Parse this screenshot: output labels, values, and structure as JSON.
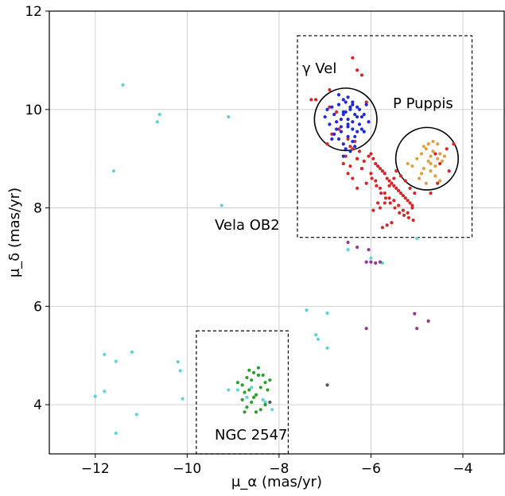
{
  "chart_data": {
    "type": "scatter",
    "title": "",
    "xlabel": "μ_α (mas/yr)",
    "ylabel": "μ_δ (mas/yr)",
    "xlim": [
      -13,
      -3.1
    ],
    "ylim": [
      3,
      12
    ],
    "grid": true,
    "x_ticks": [
      -12,
      -10,
      -8,
      -6,
      -4
    ],
    "y_ticks": [
      4,
      6,
      8,
      10,
      12
    ],
    "x_tick_labels": [
      "−12",
      "−10",
      "−8",
      "−6",
      "−4"
    ],
    "y_tick_labels": [
      "4",
      "6",
      "8",
      "10",
      "12"
    ],
    "colors": {
      "field": "#5fd3d6",
      "vela_ob2": "#d62728",
      "gamma_vel": "#1f2bd6",
      "p_puppis": "#e0a040",
      "ngc2547": "#2ca02c",
      "outlier": "#8e3b8e",
      "dark": "#555555"
    },
    "annotations": {
      "gamma_vel": "γ Vel",
      "p_puppis": "P Puppis",
      "vela_ob2": "Vela OB2",
      "ngc2547": "NGC 2547"
    },
    "regions": {
      "vela_box": {
        "x0": -7.6,
        "x1": -3.8,
        "y0": 7.4,
        "y1": 11.5
      },
      "ngc_box": {
        "x0": -9.8,
        "x1": -7.8,
        "y0": 3.0,
        "y1": 5.5
      },
      "gamma_circle": {
        "cx": -6.55,
        "cy": 9.8,
        "r": 0.68
      },
      "ppup_circle": {
        "cx": -4.78,
        "cy": 9.0,
        "r": 0.68
      }
    },
    "series": [
      {
        "key": "field",
        "x": [
          -11.4,
          -10.6,
          -10.65,
          -11.6,
          -9.1,
          -9.25,
          -11.8,
          -11.55,
          -11.2,
          -11.8,
          -12.0,
          -11.55,
          -11.1,
          -10.2,
          -10.15,
          -10.1,
          -7.4,
          -6.95,
          -7.2,
          -7.15,
          -6.95,
          -6.5,
          -6.0,
          -5.75,
          -5.0,
          -8.6,
          -8.7,
          -8.3,
          -8.15,
          -8.9,
          -9.1,
          -8.45,
          -8.35
        ],
        "y": [
          10.5,
          9.9,
          9.75,
          8.75,
          9.85,
          8.05,
          5.02,
          4.88,
          5.07,
          4.27,
          4.17,
          3.42,
          3.8,
          4.87,
          4.69,
          4.12,
          5.92,
          5.86,
          5.42,
          5.33,
          5.15,
          7.15,
          6.98,
          6.88,
          7.38,
          4.35,
          4.15,
          4.05,
          3.9,
          4.3,
          4.3,
          4.6,
          4.1
        ]
      },
      {
        "key": "vela_ob2",
        "x": [
          -7.2,
          -6.9,
          -6.75,
          -6.4,
          -6.3,
          -6.2,
          -6.1,
          -6.0,
          -5.95,
          -5.9,
          -5.85,
          -5.8,
          -5.75,
          -5.7,
          -5.65,
          -5.6,
          -5.55,
          -5.5,
          -5.45,
          -5.4,
          -5.35,
          -5.3,
          -5.25,
          -5.2,
          -5.15,
          -5.1,
          -6.35,
          -6.45,
          -6.25,
          -6.05,
          -6.15,
          -5.98,
          -5.88,
          -5.78,
          -5.68,
          -5.58,
          -5.48,
          -5.38,
          -5.28,
          -5.18,
          -5.08,
          -6.0,
          -5.9,
          -5.8,
          -5.7,
          -5.6,
          -5.5,
          -5.4,
          -5.3,
          -5.2,
          -5.1,
          -5.05,
          -5.5,
          -5.6,
          -5.7,
          -5.8,
          -5.45,
          -5.35,
          -5.25,
          -5.15,
          -5.55,
          -5.65,
          -5.75,
          -6.1,
          -6.2,
          -6.3,
          -5.95,
          -5.85,
          -6.45,
          -6.55,
          -6.6,
          -6.5,
          -6.4,
          -6.3,
          -4.5,
          -4.6,
          -4.3,
          -4.2,
          -4.35,
          -4.55,
          -4.7,
          -7.3,
          -6.9,
          -6.7,
          -6.5,
          -6.4,
          -6.3,
          -6.2,
          -6.85,
          -6.95
        ],
        "y": [
          10.2,
          10.05,
          9.95,
          11.05,
          10.8,
          10.7,
          10.15,
          9.1,
          9.0,
          8.9,
          8.85,
          8.8,
          8.75,
          8.7,
          8.6,
          8.55,
          8.5,
          8.45,
          8.4,
          8.35,
          8.3,
          8.25,
          8.2,
          8.15,
          8.1,
          8.05,
          9.35,
          9.25,
          9.15,
          9.05,
          8.95,
          8.6,
          8.45,
          8.3,
          8.2,
          8.1,
          8.0,
          7.9,
          7.85,
          7.8,
          7.75,
          8.7,
          8.55,
          8.4,
          8.3,
          8.2,
          8.15,
          8.05,
          7.95,
          7.9,
          8.0,
          8.3,
          8.6,
          8.45,
          8.1,
          8.0,
          8.75,
          8.65,
          8.55,
          8.4,
          7.7,
          7.65,
          7.6,
          8.5,
          8.8,
          9.0,
          7.95,
          8.1,
          8.85,
          9.05,
          8.9,
          8.7,
          8.6,
          8.4,
          8.9,
          9.1,
          8.75,
          9.3,
          9.2,
          8.5,
          8.3,
          10.2,
          10.4,
          9.6,
          9.4,
          9.2,
          9.0,
          8.8,
          9.5,
          9.3
        ]
      },
      {
        "key": "gamma_vel",
        "x": [
          -7.0,
          -6.95,
          -6.9,
          -6.85,
          -6.8,
          -6.75,
          -6.7,
          -6.65,
          -6.6,
          -6.55,
          -6.5,
          -6.45,
          -6.4,
          -6.35,
          -6.3,
          -6.25,
          -6.2,
          -6.15,
          -6.1,
          -6.05,
          -6.8,
          -6.7,
          -6.6,
          -6.5,
          -6.4,
          -6.3,
          -6.2,
          -6.6,
          -6.5,
          -6.4,
          -6.55,
          -6.45,
          -6.35,
          -6.65,
          -6.75,
          -6.85,
          -6.25,
          -6.15,
          -6.7,
          -6.6,
          -6.5,
          -6.4,
          -6.3,
          -6.55,
          -6.45,
          -6.65,
          -6.35,
          -6.5,
          -6.6,
          -6.4
        ],
        "y": [
          9.85,
          10.0,
          9.7,
          10.05,
          9.9,
          9.75,
          10.1,
          9.65,
          9.95,
          10.15,
          9.8,
          10.0,
          9.6,
          9.9,
          10.05,
          9.7,
          9.85,
          9.55,
          10.1,
          9.75,
          9.5,
          9.4,
          9.3,
          9.45,
          9.35,
          9.55,
          9.6,
          10.2,
          10.25,
          10.15,
          9.2,
          9.15,
          9.25,
          9.8,
          9.6,
          9.4,
          10.0,
          9.9,
          10.3,
          9.05,
          9.65,
          9.75,
          9.85,
          9.95,
          10.05,
          9.55,
          9.45,
          9.7,
          9.9,
          10.1
        ]
      },
      {
        "key": "p_puppis",
        "x": [
          -5.2,
          -5.1,
          -5.0,
          -4.9,
          -4.85,
          -4.8,
          -4.75,
          -4.7,
          -4.65,
          -4.6,
          -4.55,
          -4.5,
          -4.45,
          -4.4,
          -4.95,
          -4.9,
          -4.8,
          -4.7,
          -4.6,
          -4.5,
          -4.75,
          -4.65,
          -4.85,
          -4.55,
          -4.7
        ],
        "y": [
          8.9,
          8.85,
          9.0,
          9.1,
          8.8,
          9.2,
          8.95,
          9.05,
          9.15,
          8.85,
          9.0,
          9.1,
          8.95,
          9.05,
          8.6,
          8.7,
          8.5,
          8.75,
          8.65,
          8.55,
          9.3,
          9.35,
          9.25,
          9.3,
          8.9
        ]
      },
      {
        "key": "ngc2547",
        "x": [
          -8.9,
          -8.8,
          -8.75,
          -8.7,
          -8.65,
          -8.6,
          -8.55,
          -8.5,
          -8.45,
          -8.4,
          -8.35,
          -8.3,
          -8.25,
          -8.2,
          -8.8,
          -8.7,
          -8.6,
          -8.5,
          -8.4,
          -8.3,
          -8.65,
          -8.55,
          -8.45,
          -8.75
        ],
        "y": [
          4.45,
          4.4,
          4.25,
          4.55,
          4.3,
          4.5,
          4.65,
          4.2,
          4.75,
          4.35,
          4.6,
          4.45,
          4.3,
          4.5,
          4.1,
          3.95,
          4.05,
          3.85,
          3.9,
          4.0,
          4.7,
          4.15,
          4.6,
          3.85
        ]
      },
      {
        "key": "outlier",
        "x": [
          -6.5,
          -6.3,
          -6.05,
          -6.1,
          -6.0,
          -5.9,
          -5.8,
          -6.1,
          -5.05,
          -5.0,
          -4.75
        ],
        "y": [
          7.3,
          7.2,
          7.15,
          6.9,
          6.9,
          6.88,
          6.9,
          5.55,
          5.85,
          5.55,
          5.7
        ]
      },
      {
        "key": "dark",
        "x": [
          -6.95,
          -8.2
        ],
        "y": [
          4.4,
          4.05
        ]
      }
    ]
  }
}
